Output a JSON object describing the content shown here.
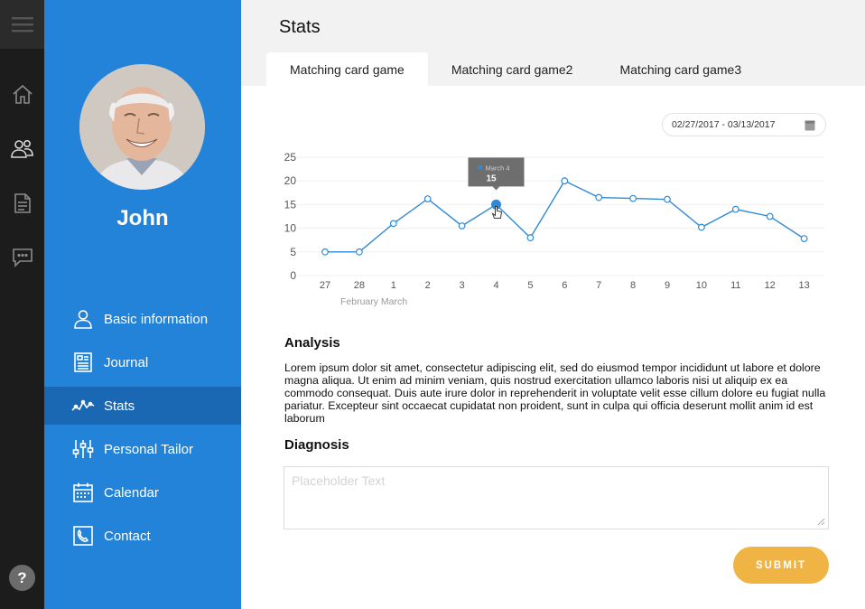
{
  "user": {
    "name": "John"
  },
  "page": {
    "title": "Stats"
  },
  "tabs": [
    {
      "label": "Matching card game",
      "active": true
    },
    {
      "label": "Matching card game2",
      "active": false
    },
    {
      "label": "Matching card game3",
      "active": false
    }
  ],
  "sidebar": {
    "items": [
      {
        "label": "Basic information",
        "icon": "person-icon",
        "active": false
      },
      {
        "label": "Journal",
        "icon": "journal-icon",
        "active": false
      },
      {
        "label": "Stats",
        "icon": "stats-icon",
        "active": true
      },
      {
        "label": "Personal Tailor",
        "icon": "sliders-icon",
        "active": false
      },
      {
        "label": "Calendar",
        "icon": "calendar-icon",
        "active": false
      },
      {
        "label": "Contact",
        "icon": "phone-icon",
        "active": false
      }
    ]
  },
  "rail": {
    "icons": [
      "menu-icon",
      "home-icon",
      "users-icon",
      "document-icon",
      "chat-icon"
    ],
    "help_label": "?"
  },
  "date_range": "02/27/2017 - 03/13/2017",
  "chart_data": {
    "type": "line",
    "x": [
      "27",
      "28",
      "1",
      "2",
      "3",
      "4",
      "5",
      "6",
      "7",
      "8",
      "9",
      "10",
      "11",
      "12",
      "13"
    ],
    "x_group_labels": [
      "February",
      "March"
    ],
    "series": [
      {
        "values": [
          5,
          5,
          11,
          16.2,
          10.5,
          15,
          8,
          20,
          16.5,
          16.3,
          16.1,
          10.2,
          14,
          12.5,
          7.8
        ]
      }
    ],
    "ylim": [
      0,
      25
    ],
    "y_ticks": [
      0,
      5,
      10,
      15,
      20,
      25
    ],
    "grid": true,
    "tooltip": {
      "label": "March 4",
      "value": "15",
      "index": 5
    },
    "colors": {
      "line": "#2f8ad6",
      "tooltip_bg": "#6e6e6e"
    }
  },
  "analysis": {
    "title": "Analysis",
    "text": "Lorem ipsum dolor sit amet, consectetur adipiscing elit, sed do eiusmod tempor incididunt ut labore et dolore magna aliqua. Ut enim ad minim veniam, quis nostrud exercitation ullamco laboris nisi ut aliquip ex ea commodo consequat. Duis aute irure dolor in reprehenderit in voluptate velit esse cillum dolore eu fugiat nulla pariatur. Excepteur sint occaecat cupidatat non proident, sunt in culpa qui officia deserunt mollit anim id est laborum"
  },
  "diagnosis": {
    "title": "Diagnosis",
    "placeholder": "Placeholder Text"
  },
  "submit_label": "SUBMIT",
  "colors": {
    "sidebar": "#2383d9",
    "sidebar_active": "#1a68b3",
    "rail": "#1c1c1c",
    "submit": "#f0b445"
  }
}
